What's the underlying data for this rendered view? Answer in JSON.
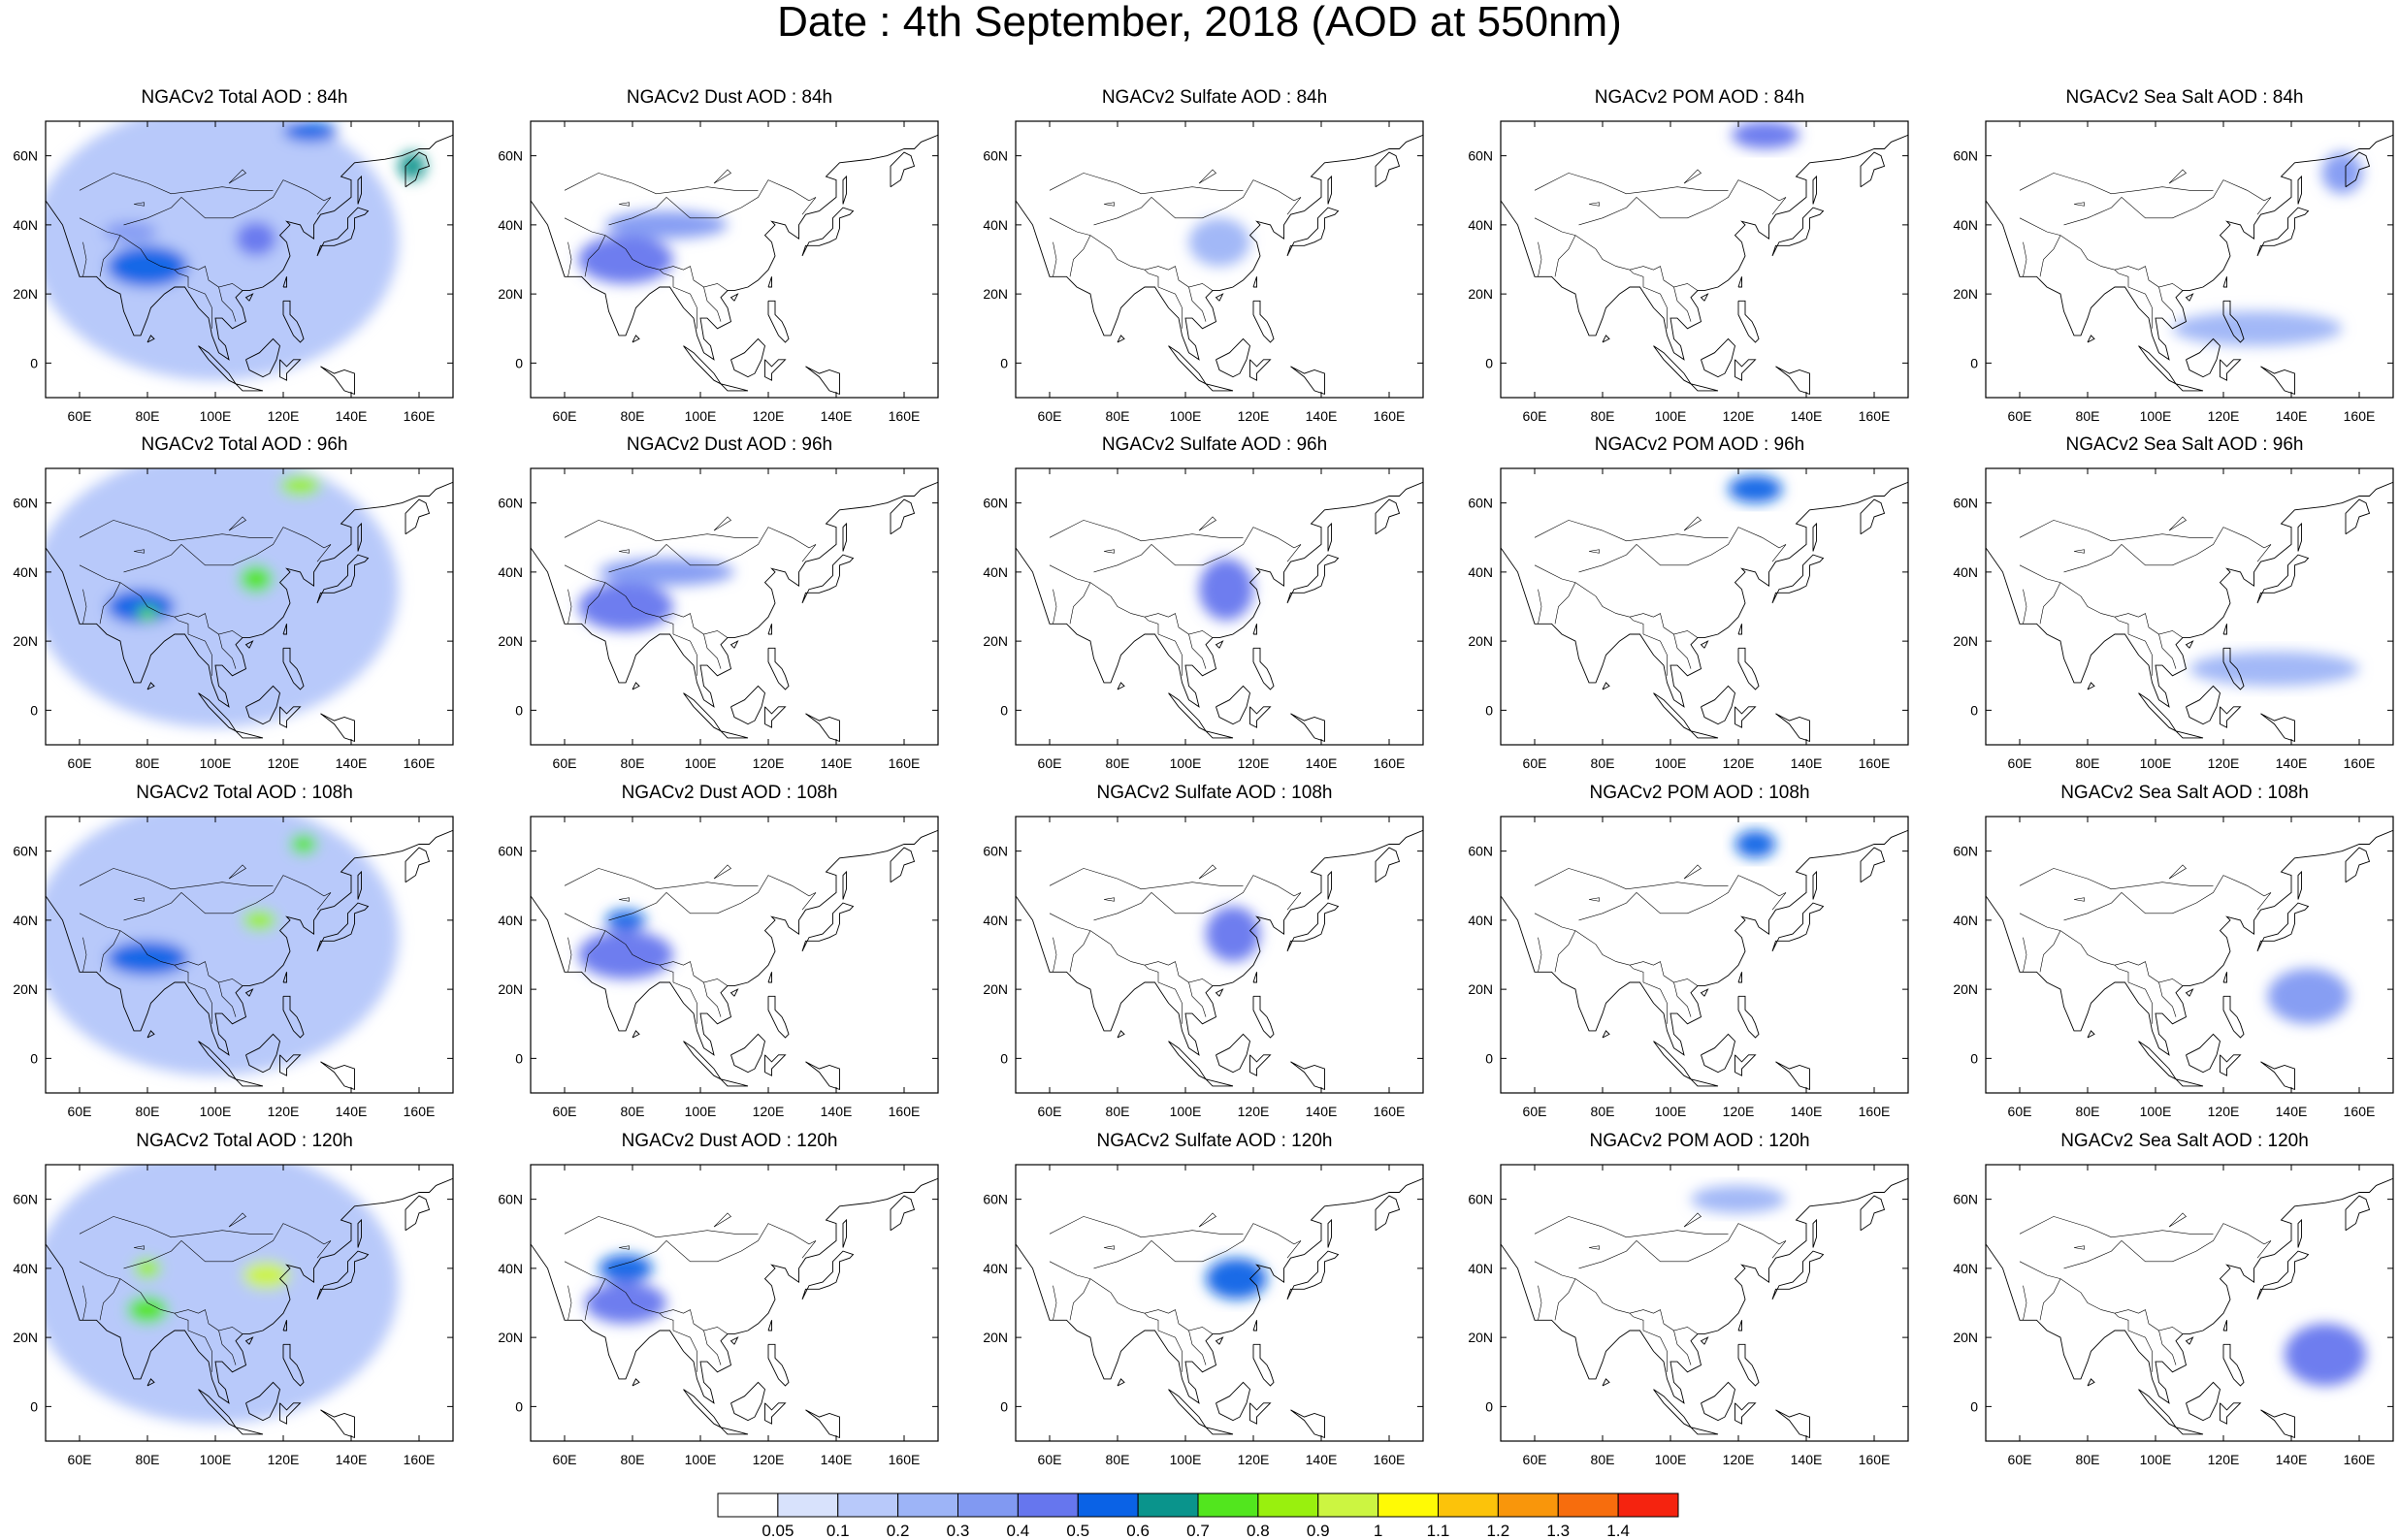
{
  "title": "Date : 4th September, 2018 (AOD at 550nm)",
  "axes": {
    "lon_ticks": [
      "60E",
      "80E",
      "100E",
      "120E",
      "140E",
      "160E"
    ],
    "lat_ticks": [
      "60N",
      "40N",
      "20N",
      "0"
    ],
    "lon_range": [
      50,
      170
    ],
    "lat_range": [
      -10,
      70
    ]
  },
  "panels": [
    {
      "title": "NGACv2 Total AOD : 84h",
      "species": "total",
      "hour": 84
    },
    {
      "title": "NGACv2 Dust AOD : 84h",
      "species": "dust",
      "hour": 84
    },
    {
      "title": "NGACv2 Sulfate AOD : 84h",
      "species": "sulfate",
      "hour": 84
    },
    {
      "title": "NGACv2 POM AOD : 84h",
      "species": "pom",
      "hour": 84
    },
    {
      "title": "NGACv2 Sea Salt AOD : 84h",
      "species": "seasalt",
      "hour": 84
    },
    {
      "title": "NGACv2 Total AOD : 96h",
      "species": "total",
      "hour": 96
    },
    {
      "title": "NGACv2 Dust AOD : 96h",
      "species": "dust",
      "hour": 96
    },
    {
      "title": "NGACv2 Sulfate AOD : 96h",
      "species": "sulfate",
      "hour": 96
    },
    {
      "title": "NGACv2 POM AOD : 96h",
      "species": "pom",
      "hour": 96
    },
    {
      "title": "NGACv2 Sea Salt AOD : 96h",
      "species": "seasalt",
      "hour": 96
    },
    {
      "title": "NGACv2 Total AOD : 108h",
      "species": "total",
      "hour": 108
    },
    {
      "title": "NGACv2 Dust AOD : 108h",
      "species": "dust",
      "hour": 108
    },
    {
      "title": "NGACv2 Sulfate AOD : 108h",
      "species": "sulfate",
      "hour": 108
    },
    {
      "title": "NGACv2 POM AOD : 108h",
      "species": "pom",
      "hour": 108
    },
    {
      "title": "NGACv2 Sea Salt AOD : 108h",
      "species": "seasalt",
      "hour": 108
    },
    {
      "title": "NGACv2 Total AOD : 120h",
      "species": "total",
      "hour": 120
    },
    {
      "title": "NGACv2 Dust AOD : 120h",
      "species": "dust",
      "hour": 120
    },
    {
      "title": "NGACv2 Sulfate AOD : 120h",
      "species": "sulfate",
      "hour": 120
    },
    {
      "title": "NGACv2 POM AOD : 120h",
      "species": "pom",
      "hour": 120
    },
    {
      "title": "NGACv2 Sea Salt  AOD : 120h",
      "species": "seasalt",
      "hour": 120
    }
  ],
  "colorbar": {
    "labels": [
      "0.05",
      "0.1",
      "0.2",
      "0.3",
      "0.4",
      "0.5",
      "0.6",
      "0.7",
      "0.8",
      "0.9",
      "1",
      "1.1",
      "1.2",
      "1.3",
      "1.4"
    ],
    "colors": [
      "#ffffff",
      "#d8e2fc",
      "#b8c9fa",
      "#9db4f7",
      "#8199f2",
      "#6676ee",
      "#0a62e6",
      "#0a948c",
      "#52e61e",
      "#99f00e",
      "#ccf541",
      "#fffa05",
      "#fcc30a",
      "#f9960b",
      "#f76d0d",
      "#f5230f"
    ]
  },
  "chart_data": {
    "type": "heatmap",
    "title": "Date : 4th September, 2018 (AOD at 550nm)",
    "variable": "AOD at 550nm",
    "forecast_hours": [
      84,
      96,
      108,
      120
    ],
    "species": [
      "Total",
      "Dust",
      "Sulfate",
      "POM",
      "Sea Salt"
    ],
    "colorbar_levels": [
      0.05,
      0.1,
      0.2,
      0.3,
      0.4,
      0.5,
      0.6,
      0.7,
      0.8,
      0.9,
      1,
      1.1,
      1.2,
      1.3,
      1.4
    ],
    "xlim": [
      50,
      170
    ],
    "ylim": [
      -10,
      70
    ],
    "features": {
      "total": {
        "84": [
          {
            "lon": 80,
            "lat": 28,
            "rx": 12,
            "ry": 6,
            "v": 0.5
          },
          {
            "lon": 128,
            "lat": 67,
            "rx": 8,
            "ry": 3,
            "v": 0.5
          },
          {
            "lon": 158,
            "lat": 57,
            "rx": 4,
            "ry": 4,
            "v": 0.6
          },
          {
            "lon": 112,
            "lat": 36,
            "rx": 6,
            "ry": 5,
            "v": 0.4
          },
          {
            "lon": 75,
            "lat": 38,
            "rx": 8,
            "ry": 3,
            "v": 0.35
          }
        ],
        "96": [
          {
            "lon": 78,
            "lat": 30,
            "rx": 10,
            "ry": 5,
            "v": 0.5
          },
          {
            "lon": 112,
            "lat": 38,
            "rx": 5,
            "ry": 4,
            "v": 0.7
          },
          {
            "lon": 125,
            "lat": 65,
            "rx": 6,
            "ry": 3,
            "v": 0.8
          },
          {
            "lon": 80,
            "lat": 28,
            "rx": 3,
            "ry": 2,
            "v": 0.7
          }
        ],
        "108": [
          {
            "lon": 80,
            "lat": 29,
            "rx": 12,
            "ry": 5,
            "v": 0.5
          },
          {
            "lon": 113,
            "lat": 40,
            "rx": 5,
            "ry": 3,
            "v": 0.8
          },
          {
            "lon": 126,
            "lat": 62,
            "rx": 4,
            "ry": 3,
            "v": 0.7
          }
        ],
        "120": [
          {
            "lon": 115,
            "lat": 38,
            "rx": 7,
            "ry": 4,
            "v": 0.9
          },
          {
            "lon": 80,
            "lat": 40,
            "rx": 4,
            "ry": 3,
            "v": 0.8
          },
          {
            "lon": 80,
            "lat": 28,
            "rx": 6,
            "ry": 4,
            "v": 0.7
          }
        ]
      },
      "dust": {
        "84": [
          {
            "lon": 78,
            "lat": 30,
            "rx": 14,
            "ry": 7,
            "v": 0.45
          },
          {
            "lon": 90,
            "lat": 40,
            "rx": 18,
            "ry": 4,
            "v": 0.3
          }
        ],
        "96": [
          {
            "lon": 78,
            "lat": 30,
            "rx": 14,
            "ry": 7,
            "v": 0.45
          },
          {
            "lon": 90,
            "lat": 40,
            "rx": 20,
            "ry": 4,
            "v": 0.3
          }
        ],
        "108": [
          {
            "lon": 78,
            "lat": 30,
            "rx": 14,
            "ry": 7,
            "v": 0.45
          },
          {
            "lon": 78,
            "lat": 40,
            "rx": 6,
            "ry": 3,
            "v": 0.5
          }
        ],
        "120": [
          {
            "lon": 78,
            "lat": 40,
            "rx": 8,
            "ry": 4,
            "v": 0.5
          },
          {
            "lon": 78,
            "lat": 30,
            "rx": 12,
            "ry": 6,
            "v": 0.45
          }
        ]
      },
      "sulfate": {
        "84": [
          {
            "lon": 110,
            "lat": 35,
            "rx": 9,
            "ry": 7,
            "v": 0.25
          }
        ],
        "96": [
          {
            "lon": 112,
            "lat": 35,
            "rx": 8,
            "ry": 9,
            "v": 0.4
          }
        ],
        "108": [
          {
            "lon": 114,
            "lat": 36,
            "rx": 8,
            "ry": 8,
            "v": 0.4
          }
        ],
        "120": [
          {
            "lon": 115,
            "lat": 37,
            "rx": 9,
            "ry": 6,
            "v": 0.5
          }
        ]
      },
      "pom": {
        "84": [
          {
            "lon": 128,
            "lat": 66,
            "rx": 10,
            "ry": 4,
            "v": 0.45
          }
        ],
        "96": [
          {
            "lon": 125,
            "lat": 64,
            "rx": 8,
            "ry": 4,
            "v": 0.5
          }
        ],
        "108": [
          {
            "lon": 125,
            "lat": 62,
            "rx": 6,
            "ry": 4,
            "v": 0.5
          }
        ],
        "120": [
          {
            "lon": 120,
            "lat": 60,
            "rx": 14,
            "ry": 4,
            "v": 0.25
          }
        ]
      },
      "seasalt": {
        "84": [
          {
            "lon": 155,
            "lat": 55,
            "rx": 6,
            "ry": 6,
            "v": 0.3
          },
          {
            "lon": 130,
            "lat": 10,
            "rx": 25,
            "ry": 5,
            "v": 0.2
          }
        ],
        "96": [
          {
            "lon": 135,
            "lat": 12,
            "rx": 25,
            "ry": 5,
            "v": 0.25
          }
        ],
        "108": [
          {
            "lon": 145,
            "lat": 18,
            "rx": 12,
            "ry": 8,
            "v": 0.3
          }
        ],
        "120": [
          {
            "lon": 150,
            "lat": 15,
            "rx": 12,
            "ry": 9,
            "v": 0.4
          }
        ]
      }
    }
  }
}
